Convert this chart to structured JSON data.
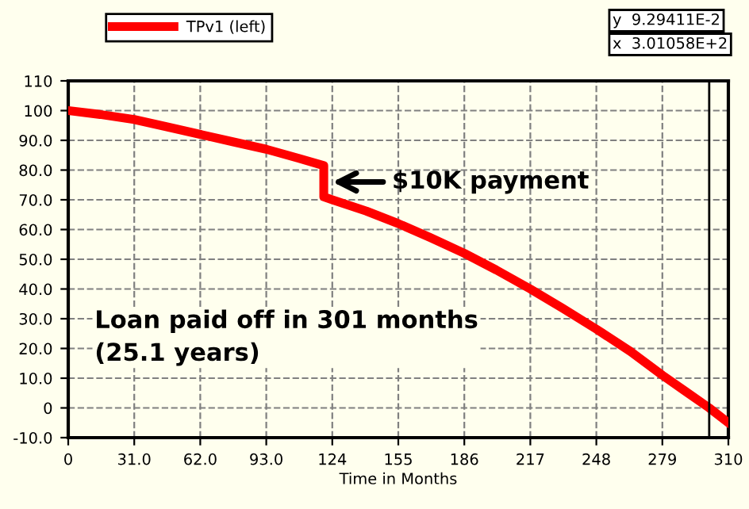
{
  "chart_data": {
    "type": "line",
    "xlabel": "Time in Months",
    "x": [
      0,
      15,
      31,
      46,
      62,
      78,
      93,
      108,
      120,
      120,
      124,
      140,
      155,
      170,
      186,
      201,
      217,
      232,
      248,
      264,
      279,
      290,
      301,
      310
    ],
    "series": [
      {
        "name": "TPv1 (left)",
        "color": "#ff0000",
        "values": [
          100,
          98.7,
          97,
          94.6,
          92,
          89.4,
          87,
          84,
          81.5,
          71,
          70,
          66.2,
          62,
          57.3,
          52,
          46.4,
          40,
          33.6,
          26.5,
          19,
          11,
          5.5,
          0,
          -5
        ]
      }
    ],
    "xlim": [
      0,
      310
    ],
    "xticks": [
      0,
      {
        "value": 31,
        "label": "31.0"
      },
      {
        "value": 62,
        "label": "62.0"
      },
      {
        "value": 93,
        "label": "93.0"
      },
      124,
      155,
      186,
      217,
      248,
      279,
      310
    ],
    "ylim": [
      -10,
      110
    ],
    "yticks": [
      {
        "value": -10,
        "label": "-10.0"
      },
      0,
      {
        "value": 10,
        "label": "10.0"
      },
      {
        "value": 20,
        "label": "20.0"
      },
      {
        "value": 30,
        "label": "30.0"
      },
      {
        "value": 40,
        "label": "40.0"
      },
      {
        "value": 50,
        "label": "50.0"
      },
      {
        "value": 60,
        "label": "60.0"
      },
      {
        "value": 70,
        "label": "70.0"
      },
      {
        "value": 80,
        "label": "80.0"
      },
      {
        "value": 90,
        "label": "90.0"
      },
      100,
      110
    ],
    "grid": true,
    "legend": "top left",
    "marker": "none",
    "line_style": "solid",
    "ref_lines": [
      {
        "axis": "x",
        "value": 301,
        "color": "#000000",
        "line_style": "solid"
      }
    ],
    "annotations": [
      {
        "text": "$10K payment",
        "x": 122,
        "y": 76
      },
      "Loan paid off in 301 months\n(25.1 years)",
      "y  9.29411E-2",
      "x  3.01058E+2"
    ]
  }
}
